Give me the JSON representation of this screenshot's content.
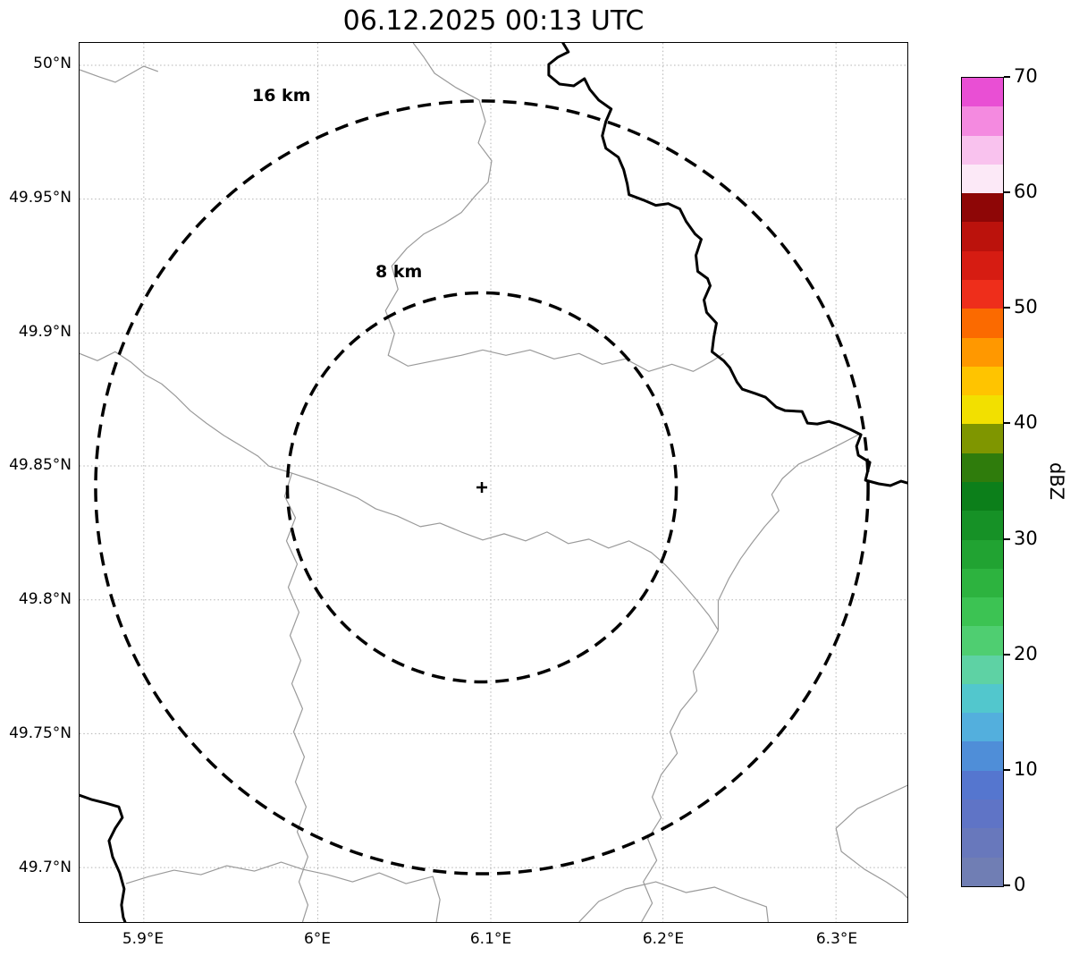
{
  "title": "06.12.2025 00:13 UTC",
  "map": {
    "y_ticks": [
      "50°N",
      "49.95°N",
      "49.9°N",
      "49.85°N",
      "49.8°N",
      "49.75°N",
      "49.7°N"
    ],
    "x_ticks": [
      "5.9°E",
      "6°E",
      "6.1°E",
      "6.2°E",
      "6.3°E"
    ],
    "range_rings": [
      {
        "label": "16 km",
        "radius_km": 16
      },
      {
        "label": "8 km",
        "radius_km": 8
      }
    ],
    "center_marker": "+"
  },
  "colorbar": {
    "label": "dBZ",
    "min": 0,
    "max": 70,
    "tick_values": [
      0,
      10,
      20,
      30,
      40,
      50,
      60,
      70
    ],
    "segment_colors_bottom_to_top": [
      "#707eb4",
      "#6878bc",
      "#5f74c6",
      "#5576cf",
      "#4f8ed8",
      "#53afdd",
      "#52c7cd",
      "#5ed2a4",
      "#4fce71",
      "#3cc353",
      "#2db33f",
      "#21a332",
      "#169126",
      "#0c7f1a",
      "#2f7c0c",
      "#7f9600",
      "#f2e000",
      "#ffc400",
      "#ff9800",
      "#fb6a00",
      "#ee2e1b",
      "#d61c12",
      "#bb120c",
      "#8e0606",
      "#fce9f7",
      "#f9c2ee",
      "#f48ae0",
      "#e94fd4"
    ]
  },
  "chart_data": {
    "type": "map",
    "title": "06.12.2025 00:13 UTC",
    "x_axis": {
      "ticks": [
        "5.9°E",
        "6°E",
        "6.1°E",
        "6.2°E",
        "6.3°E"
      ]
    },
    "y_axis": {
      "ticks": [
        "50°N",
        "49.95°N",
        "49.9°N",
        "49.85°N",
        "49.8°N",
        "49.75°N",
        "49.7°N"
      ]
    },
    "grid": true,
    "range_rings_km": [
      8,
      16
    ],
    "colorbar": {
      "label": "dBZ",
      "range": [
        0,
        70
      ]
    },
    "reflectivity_echoes_visible": false
  }
}
